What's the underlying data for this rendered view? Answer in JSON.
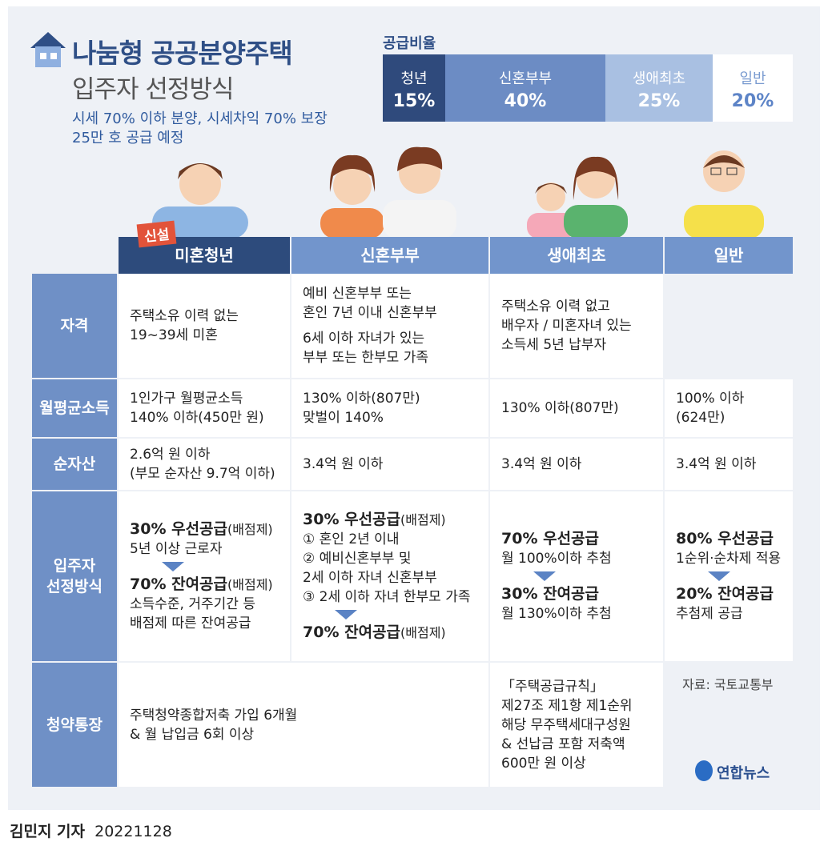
{
  "header": {
    "title": "나눔형 공공분양주택",
    "subtitle": "입주자 선정방식",
    "description": [
      "시세 70% 이하 분양, 시세차익 70% 보장",
      "25만 호 공급 예정"
    ]
  },
  "supply_ratio": {
    "title": "공급비율",
    "segments": [
      {
        "name": "청년",
        "share": "15%"
      },
      {
        "name": "신혼부부",
        "share": "40%"
      },
      {
        "name": "생애최초",
        "share": "25%"
      },
      {
        "name": "일반",
        "share": "20%"
      }
    ]
  },
  "table": {
    "badge": "신설",
    "columns": [
      "미혼청년",
      "신혼부부",
      "생애최초",
      "일반"
    ],
    "rows": [
      {
        "label": [
          "자격"
        ],
        "cells": [
          [
            [
              "주택소유 이력 없는",
              "19~39세 미혼"
            ]
          ],
          [
            [
              "예비 신혼부부 또는",
              "혼인 7년 이내 신혼부부"
            ],
            [
              "6세 이하 자녀가 있는",
              "부부 또는 한부모 가족"
            ]
          ],
          [
            [
              "주택소유 이력 없고",
              "배우자 / 미혼자녀 있는",
              "소득세 5년 납부자"
            ]
          ]
        ]
      },
      {
        "label": [
          "월평균소득"
        ],
        "cells": [
          [
            [
              "1인가구 월평균소득",
              "140% 이하(450만 원)"
            ]
          ],
          [
            [
              "130% 이하(807만)",
              "맞벌이 140%"
            ]
          ],
          [
            [
              "130% 이하(807만)"
            ]
          ],
          [
            [
              "100% 이하",
              "(624만)"
            ]
          ]
        ]
      },
      {
        "label": [
          "순자산"
        ],
        "cells": [
          [
            [
              "2.6억 원 이하",
              "(부모 순자산 9.7억 이하)"
            ]
          ],
          [
            [
              "3.4억 원 이하"
            ]
          ],
          [
            [
              "3.4억 원 이하"
            ]
          ],
          [
            [
              "3.4억 원 이하"
            ]
          ]
        ]
      },
      {
        "label": [
          "입주자",
          "선정방식"
        ],
        "cells": [
          [
            [
              {
                "strong": "30% 우선공급",
                "note": "(배점제)"
              },
              "5년 이상 근로자"
            ],
            [
              {
                "strong": "70% 잔여공급",
                "note": "(배점제)"
              },
              "소득수준, 거주기간 등",
              "배점제 따른 잔여공급"
            ]
          ],
          [
            [
              {
                "strong": "30% 우선공급",
                "note": "(배점제)"
              },
              "① 혼인 2년 이내",
              "② 예비신혼부부 및",
              "2세 이하 자녀 신혼부부",
              "③ 2세 이하 자녀 한부모 가족"
            ],
            [
              {
                "strong": "70% 잔여공급",
                "note": "(배점제)"
              }
            ]
          ],
          [
            [
              {
                "strong": "70% 우선공급"
              },
              "월 100%이하 추첨"
            ],
            [
              {
                "strong": "30% 잔여공급"
              },
              "월 130%이하 추첨"
            ]
          ],
          [
            [
              {
                "strong": "80% 우선공급"
              },
              "1순위·순차제 적용"
            ],
            [
              {
                "strong": "20% 잔여공급"
              },
              "추첨제 공급"
            ]
          ]
        ]
      },
      {
        "label": [
          "청약통장"
        ],
        "cells": [
          [
            [
              "주택청약종합저축 가입 6개월",
              "& 월 납입금 6회 이상"
            ]
          ],
          [
            [
              "「주택공급규칙」",
              "제27조 제1항 제1순위",
              "해당 무주택세대구성원",
              "& 선납금 포함 저축액",
              "600만 원 이상"
            ]
          ]
        ]
      }
    ]
  },
  "source": "자료: 국토교통부",
  "logo": "연합뉴스",
  "byline": {
    "author": "김민지 기자",
    "date": "20221128"
  }
}
